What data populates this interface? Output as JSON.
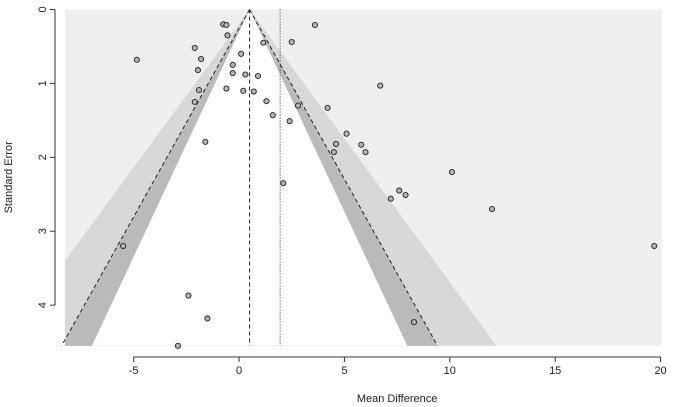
{
  "chart_data": {
    "type": "scatter",
    "subtype": "contour-enhanced funnel plot",
    "title": "",
    "xlabel": "Mean Difference",
    "ylabel": "Standard Error",
    "xlim": [
      -8.4,
      20.4
    ],
    "ylim": [
      4.62,
      -0.02
    ],
    "y_reversed": true,
    "x_ticks": [
      -5,
      0,
      5,
      10,
      15,
      20
    ],
    "y_ticks": [
      0,
      1,
      2,
      3,
      4
    ],
    "grid": false,
    "legend": "none",
    "funnel": {
      "max_se": 4.55,
      "pooled_effect": 0.5,
      "random_effects_estimate": 1.95,
      "contours": [
        {
          "z": 2.576,
          "color": "#d8d8d8"
        },
        {
          "z": 1.96,
          "color": "#bababa"
        },
        {
          "z": 1.645,
          "color": "#a5a5a5"
        }
      ],
      "dashed_limit_z": 1.96
    },
    "colors": {
      "background": "#efefef",
      "inner_region": "#ffffff",
      "point_fill": "#b4b4b4",
      "point_stroke": "#222222",
      "line": "#222222"
    },
    "points": [
      {
        "x": -0.75,
        "y": 0.2
      },
      {
        "x": -0.6,
        "y": 0.21
      },
      {
        "x": -0.55,
        "y": 0.35
      },
      {
        "x": -2.1,
        "y": 0.52
      },
      {
        "x": -4.85,
        "y": 0.68
      },
      {
        "x": -1.8,
        "y": 0.67
      },
      {
        "x": -1.95,
        "y": 0.82
      },
      {
        "x": 0.1,
        "y": 0.6
      },
      {
        "x": 1.15,
        "y": 0.45
      },
      {
        "x": 2.5,
        "y": 0.44
      },
      {
        "x": 3.6,
        "y": 0.21
      },
      {
        "x": -0.3,
        "y": 0.75
      },
      {
        "x": -0.3,
        "y": 0.86
      },
      {
        "x": 0.3,
        "y": 0.88
      },
      {
        "x": 0.9,
        "y": 0.9
      },
      {
        "x": -0.6,
        "y": 1.07
      },
      {
        "x": 0.2,
        "y": 1.1
      },
      {
        "x": 0.7,
        "y": 1.11
      },
      {
        "x": -1.9,
        "y": 1.09
      },
      {
        "x": -2.1,
        "y": 1.25
      },
      {
        "x": 1.3,
        "y": 1.24
      },
      {
        "x": 2.8,
        "y": 1.3
      },
      {
        "x": 1.6,
        "y": 1.43
      },
      {
        "x": 2.4,
        "y": 1.51
      },
      {
        "x": 4.2,
        "y": 1.33
      },
      {
        "x": 6.7,
        "y": 1.03
      },
      {
        "x": 5.1,
        "y": 1.68
      },
      {
        "x": 4.6,
        "y": 1.82
      },
      {
        "x": 4.5,
        "y": 1.93
      },
      {
        "x": 5.8,
        "y": 1.83
      },
      {
        "x": 6.0,
        "y": 1.93
      },
      {
        "x": -1.6,
        "y": 1.79
      },
      {
        "x": 10.1,
        "y": 2.2
      },
      {
        "x": 2.1,
        "y": 2.35
      },
      {
        "x": 7.6,
        "y": 2.45
      },
      {
        "x": 7.9,
        "y": 2.51
      },
      {
        "x": 7.2,
        "y": 2.56
      },
      {
        "x": 12.0,
        "y": 2.7
      },
      {
        "x": -5.5,
        "y": 3.2
      },
      {
        "x": 19.7,
        "y": 3.2
      },
      {
        "x": -2.4,
        "y": 3.87
      },
      {
        "x": -1.5,
        "y": 4.18
      },
      {
        "x": 8.3,
        "y": 4.23
      },
      {
        "x": -2.9,
        "y": 4.55
      }
    ]
  }
}
